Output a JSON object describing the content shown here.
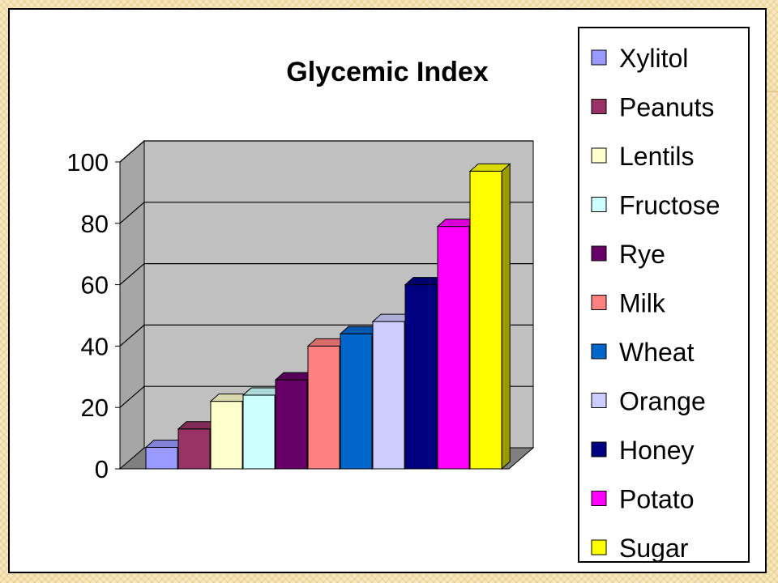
{
  "chart_data": {
    "type": "bar",
    "title": "Glycemic Index",
    "categories": [
      "Xylitol",
      "Peanuts",
      "Lentils",
      "Fructose",
      "Rye",
      "Milk",
      "Wheat",
      "Orange",
      "Honey",
      "Potato",
      "Sugar"
    ],
    "values": [
      7,
      13,
      22,
      24,
      29,
      40,
      44,
      48,
      60,
      79,
      97
    ],
    "colors": [
      "#9999ff",
      "#993366",
      "#ffffcc",
      "#ccffff",
      "#660066",
      "#ff8080",
      "#0066cc",
      "#ccccff",
      "#000080",
      "#ff00ff",
      "#ffff00"
    ],
    "ylim": [
      0,
      100
    ],
    "yticks": [
      "0",
      "20",
      "40",
      "60",
      "80",
      "100"
    ],
    "legend": "right",
    "grid": true,
    "style": "3d-column"
  }
}
